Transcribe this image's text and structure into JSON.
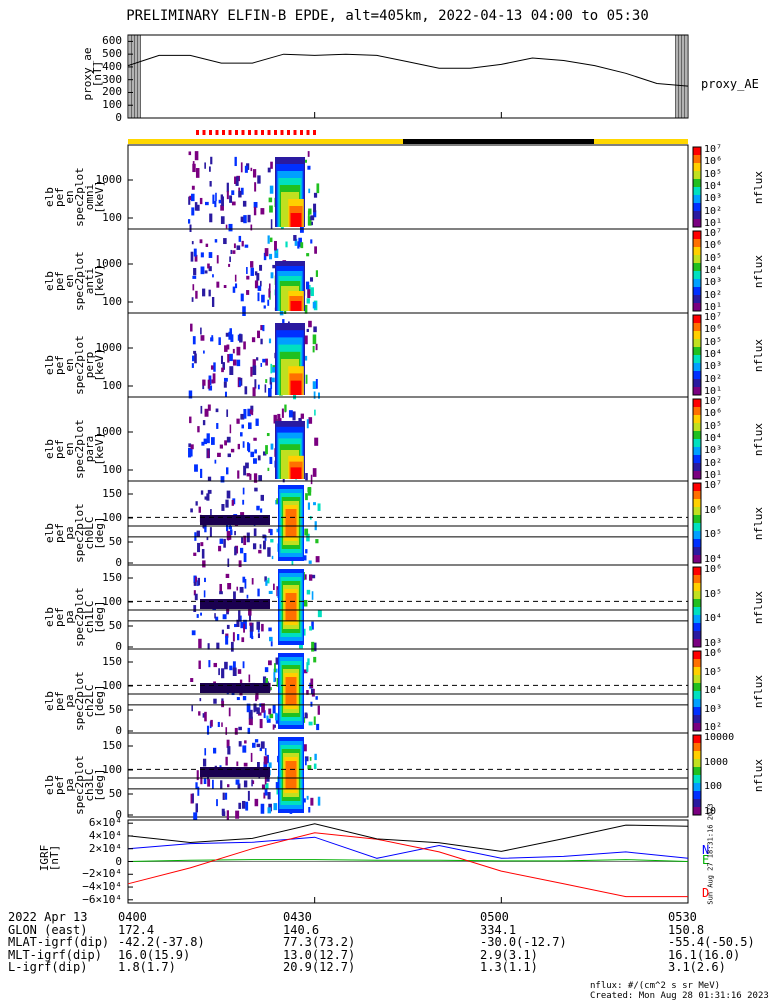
{
  "title": "PRELIMINARY ELFIN-B EPDE, alt=405km, 2022-04-13 04:00 to 05:30",
  "ae": {
    "ylabel": "proxy_ae\n[nT]",
    "ticks": [
      "600",
      "500",
      "400",
      "300",
      "200",
      "100",
      "0"
    ],
    "series_label": "proxy_AE"
  },
  "panels": [
    {
      "label": "elb\npef\nen\nspec2plot\nomni\n[keV]",
      "ticks": [
        "1000",
        "100"
      ],
      "cbar": [
        "10⁷",
        "10⁶",
        "10⁵",
        "10⁴",
        "10³",
        "10²",
        "10¹"
      ],
      "unit": "nflux"
    },
    {
      "label": "elb\npef\nen\nspec2plot\nanti\n[keV]",
      "ticks": [
        "1000",
        "100"
      ],
      "cbar": [
        "10⁷",
        "10⁶",
        "10⁵",
        "10⁴",
        "10³",
        "10²",
        "10¹"
      ],
      "unit": "nflux"
    },
    {
      "label": "elb\npef\nen\nspec2plot\nperp\n[keV]",
      "ticks": [
        "1000",
        "100"
      ],
      "cbar": [
        "10⁷",
        "10⁶",
        "10⁵",
        "10⁴",
        "10³",
        "10²",
        "10¹"
      ],
      "unit": "nflux"
    },
    {
      "label": "elb\npef\nen\nspec2plot\npara\n[keV]",
      "ticks": [
        "1000",
        "100"
      ],
      "cbar": [
        "10⁷",
        "10⁶",
        "10⁵",
        "10⁴",
        "10³",
        "10²",
        "10¹"
      ],
      "unit": "nflux"
    },
    {
      "label": "elb\npef\npa\nspec2plot\nch0LC\n[deg]",
      "ticks": [
        "150",
        "100",
        "50",
        "0"
      ],
      "cbar": [
        "10⁷",
        "10⁶",
        "10⁵",
        "10⁴"
      ],
      "unit": "nflux"
    },
    {
      "label": "elb\npef\npa\nspec2plot\nch1LC\n[deg]",
      "ticks": [
        "150",
        "100",
        "50",
        "0"
      ],
      "cbar": [
        "10⁶",
        "10⁵",
        "10⁴",
        "10³"
      ],
      "unit": "nflux"
    },
    {
      "label": "elb\npef\npa\nspec2plot\nch2LC\n[deg]",
      "ticks": [
        "150",
        "100",
        "50",
        "0"
      ],
      "cbar": [
        "10⁶",
        "10⁵",
        "10⁴",
        "10³",
        "10²"
      ],
      "unit": "nflux"
    },
    {
      "label": "elb\npef\npa\nspec2plot\nch3LC\n[deg]",
      "ticks": [
        "150",
        "100",
        "50",
        "0"
      ],
      "cbar": [
        "10000",
        "1000",
        "100",
        "10"
      ],
      "unit": "nflux"
    }
  ],
  "igrf": {
    "ylabel": "IGRF\n[nT]",
    "ticks": [
      "6×10⁴",
      "4×10⁴",
      "2×10⁴",
      "0",
      "−2×10⁴",
      "−4×10⁴",
      "−6×10⁴"
    ],
    "legend": [
      "N",
      "E",
      "D"
    ],
    "colors": {
      "N": "#0000ff",
      "E": "#00b000",
      "D": "#ff0000",
      "total": "#000000"
    },
    "side_note": "Sun Aug 27 18:31:16 2023"
  },
  "footer": {
    "rows": [
      {
        "label": "2022 Apr 13",
        "values": [
          "0400",
          "",
          "0430",
          "0500",
          "0530"
        ]
      },
      {
        "label": "GLON (east)",
        "values": [
          "172.4",
          "",
          "140.6",
          "334.1",
          "150.8"
        ]
      },
      {
        "label": "MLAT-igrf(dip)",
        "values": [
          "-42.2(-37.8)",
          "",
          "77.3(73.2)",
          "-30.0(-12.7)",
          "-55.4(-50.5)"
        ]
      },
      {
        "label": "MLT-igrf(dip)",
        "values": [
          "16.0(15.9)",
          "",
          "13.0(12.7)",
          "2.9(3.1)",
          "16.1(16.0)"
        ]
      },
      {
        "label": "L-igrf(dip)",
        "values": [
          "1.8(1.7)",
          "",
          "20.9(12.7)",
          "1.3(1.1)",
          "3.1(2.6)"
        ]
      }
    ],
    "note1": "nflux: #/(cm^2 s sr MeV)",
    "note2": "Created: Mon Aug 28 01:31:16 2023"
  },
  "chart_data": {
    "type": "line",
    "title": "PRELIMINARY ELFIN-B EPDE, alt=405km, 2022-04-13 04:00 to 05:30",
    "x_ticks": [
      "0400",
      "0430",
      "0500",
      "0530"
    ],
    "proxy_ae": {
      "x_minutes": [
        0,
        5,
        10,
        15,
        20,
        25,
        30,
        35,
        40,
        45,
        50,
        55,
        60,
        65,
        70,
        75,
        80,
        85,
        90
      ],
      "values": [
        410,
        490,
        490,
        430,
        430,
        500,
        490,
        500,
        490,
        440,
        390,
        390,
        420,
        470,
        450,
        410,
        350,
        270,
        250
      ],
      "ylim": [
        0,
        650
      ]
    },
    "igrf": {
      "x_minutes": [
        0,
        10,
        20,
        30,
        40,
        50,
        60,
        70,
        80,
        90
      ],
      "N": [
        20000,
        28000,
        30000,
        38000,
        5000,
        25000,
        5000,
        8000,
        15000,
        5000
      ],
      "E": [
        0,
        2000,
        3000,
        3000,
        2000,
        2000,
        1000,
        1000,
        3000,
        0
      ],
      "D": [
        -35000,
        -10000,
        20000,
        45000,
        35000,
        15000,
        -15000,
        -35000,
        -55000,
        -55000
      ],
      "ylim": [
        -65000,
        65000
      ]
    }
  }
}
